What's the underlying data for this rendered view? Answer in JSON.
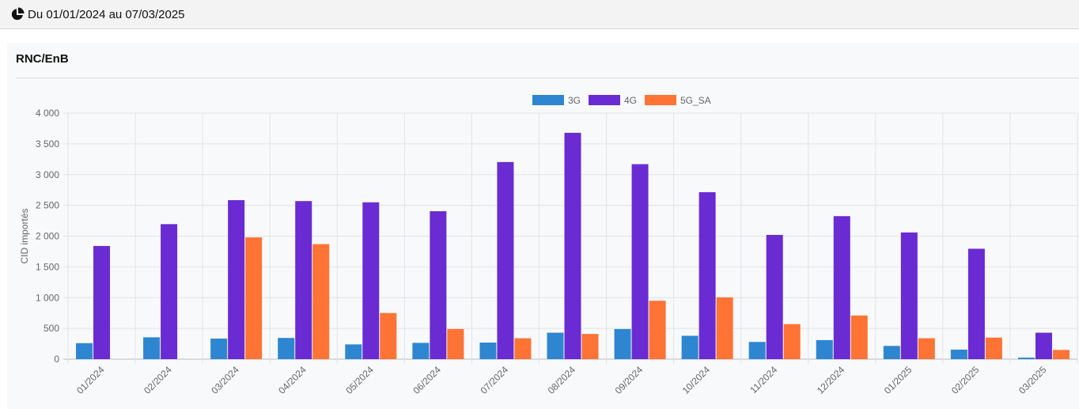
{
  "header": {
    "date_range": "Du 01/01/2024 au 07/03/2025",
    "icon": "pie-chart-icon"
  },
  "card": {
    "title": "RNC/EnB"
  },
  "chart_data": {
    "type": "bar",
    "ylabel": "CID importés",
    "ylim": [
      0,
      4000
    ],
    "yticks": [
      0,
      500,
      1000,
      1500,
      2000,
      2500,
      3000,
      3500,
      4000
    ],
    "ytick_labels": [
      "0",
      "500",
      "1 000",
      "1 500",
      "2 000",
      "2 500",
      "3 000",
      "3 500",
      "4 000"
    ],
    "grid": true,
    "legend_position": "top-center",
    "categories": [
      "01/2024",
      "02/2024",
      "03/2024",
      "04/2024",
      "05/2024",
      "06/2024",
      "07/2024",
      "08/2024",
      "09/2024",
      "10/2024",
      "11/2024",
      "12/2024",
      "01/2025",
      "02/2025",
      "03/2025"
    ],
    "series": [
      {
        "name": "3G",
        "color": "#2e86d0",
        "values": [
          260,
          355,
          335,
          345,
          240,
          265,
          270,
          430,
          490,
          380,
          280,
          310,
          215,
          155,
          25
        ]
      },
      {
        "name": "4G",
        "color": "#6a2bd2",
        "values": [
          1840,
          2195,
          2585,
          2570,
          2550,
          2405,
          3205,
          3680,
          3170,
          2715,
          2020,
          2325,
          2060,
          1795,
          430
        ]
      },
      {
        "name": "5G_SA",
        "color": "#ff7335",
        "values": [
          0,
          0,
          1980,
          1870,
          750,
          490,
          340,
          410,
          950,
          1005,
          570,
          710,
          340,
          350,
          150
        ]
      }
    ]
  }
}
